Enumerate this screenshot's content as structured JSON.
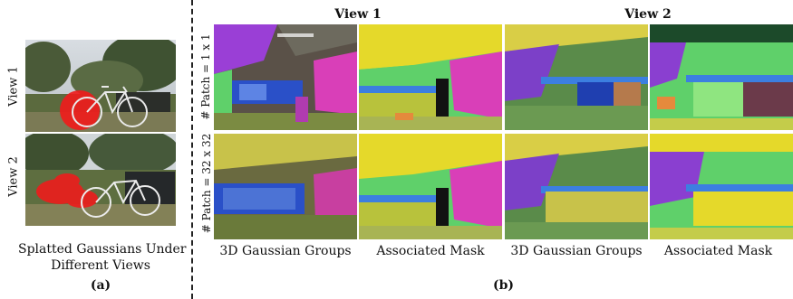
{
  "panel_a": {
    "row_labels": [
      "View 1",
      "View 2"
    ],
    "caption_line1": "Splatted Gaussians Under",
    "caption_line2": "Different Views",
    "sub_label": "(a)"
  },
  "panel_b": {
    "col_headers": [
      "View 1",
      "View 2"
    ],
    "row_labels": [
      "# Patch = 1 x 1",
      "# Patch = 32 x 32"
    ],
    "col_captions": [
      "3D Gaussian Groups",
      "Associated Mask",
      "3D Gaussian Groups",
      "Associated Mask"
    ],
    "sub_label": "(b)"
  },
  "colors": {
    "highlight_red": "#ee1c1c",
    "mask_yellow": "#e5d92a",
    "mask_purple": "#9a3fd6",
    "mask_magenta": "#d93fb8",
    "mask_green": "#5fd06a",
    "mask_blue": "#3c7fe0",
    "mask_olive": "#b8c23c"
  }
}
